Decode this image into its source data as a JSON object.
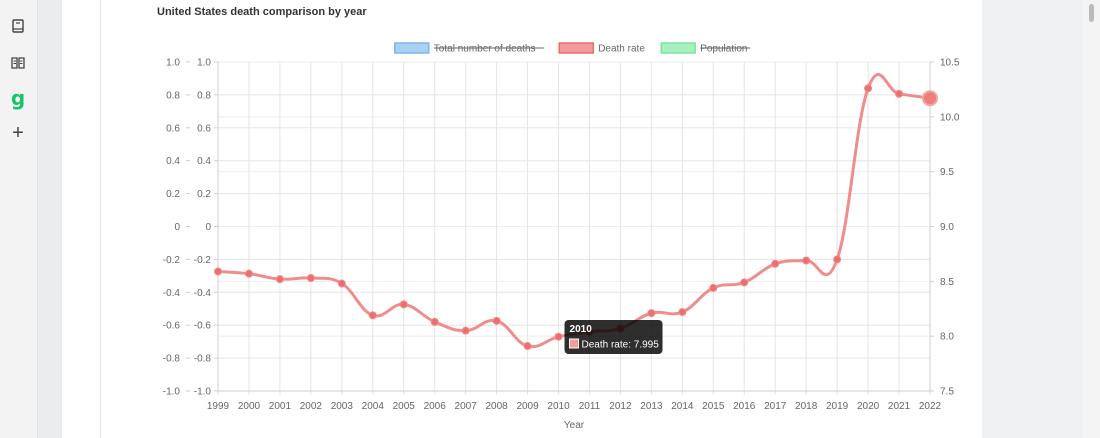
{
  "sidebar": {
    "items": [
      {
        "icon": "book-icon",
        "label": "Saved"
      },
      {
        "icon": "open-book-icon",
        "label": "Reading"
      },
      {
        "icon": "grammarly-icon",
        "label": "g"
      },
      {
        "icon": "plus-icon",
        "label": "+"
      }
    ]
  },
  "chart_data": {
    "type": "line",
    "title": "United States death comparison by year",
    "xlabel": "Year",
    "categories": [
      "1999",
      "2000",
      "2001",
      "2002",
      "2003",
      "2004",
      "2005",
      "2006",
      "2007",
      "2008",
      "2009",
      "2010",
      "2011",
      "2012",
      "2013",
      "2014",
      "2015",
      "2016",
      "2017",
      "2018",
      "2019",
      "2020",
      "2021",
      "2022"
    ],
    "legend": {
      "position": "top",
      "items": [
        {
          "label": "Total number of deaths",
          "fill": "#a9d0f5",
          "stroke": "#7fb6ea",
          "hidden": true
        },
        {
          "label": "Death rate",
          "fill": "#f49a9a",
          "stroke": "#ef6b6b",
          "hidden": false
        },
        {
          "label": "Population",
          "fill": "#a6f0bd",
          "stroke": "#7ee3a0",
          "hidden": true
        }
      ]
    },
    "series": [
      {
        "name": "Death rate",
        "color": "#f07f7f",
        "values": [
          8.59,
          8.57,
          8.52,
          8.53,
          8.48,
          8.19,
          8.29,
          8.13,
          8.05,
          8.14,
          7.91,
          7.995,
          8.04,
          8.07,
          8.21,
          8.22,
          8.44,
          8.49,
          8.66,
          8.69,
          8.7,
          10.26,
          10.21,
          10.17
        ]
      }
    ],
    "y_left": {
      "range": [
        -1.0,
        1.0
      ],
      "ticks": [
        "1.0",
        "0.8",
        "0.6",
        "0.4",
        "0.2",
        "0",
        "-0.2",
        "-0.4",
        "-0.6",
        "-0.8",
        "-1.0"
      ]
    },
    "y_left_inner": {
      "ticks": [
        "1.0",
        "0.8",
        "0.6",
        "0.4",
        "0.2",
        "0",
        "-0.2",
        "-0.4",
        "-0.6",
        "-0.8",
        "-1.0"
      ]
    },
    "y_right": {
      "range": [
        7.5,
        10.5
      ],
      "ticks": [
        "10.5",
        "10.0",
        "9.5",
        "9.0",
        "8.5",
        "8.0",
        "7.5"
      ]
    },
    "grid": true,
    "tooltip": {
      "title": "2010",
      "label": "Death rate: 7.995",
      "category": "2010",
      "value": 7.995
    },
    "active_point": {
      "category": "2022",
      "value": 10.17
    }
  }
}
